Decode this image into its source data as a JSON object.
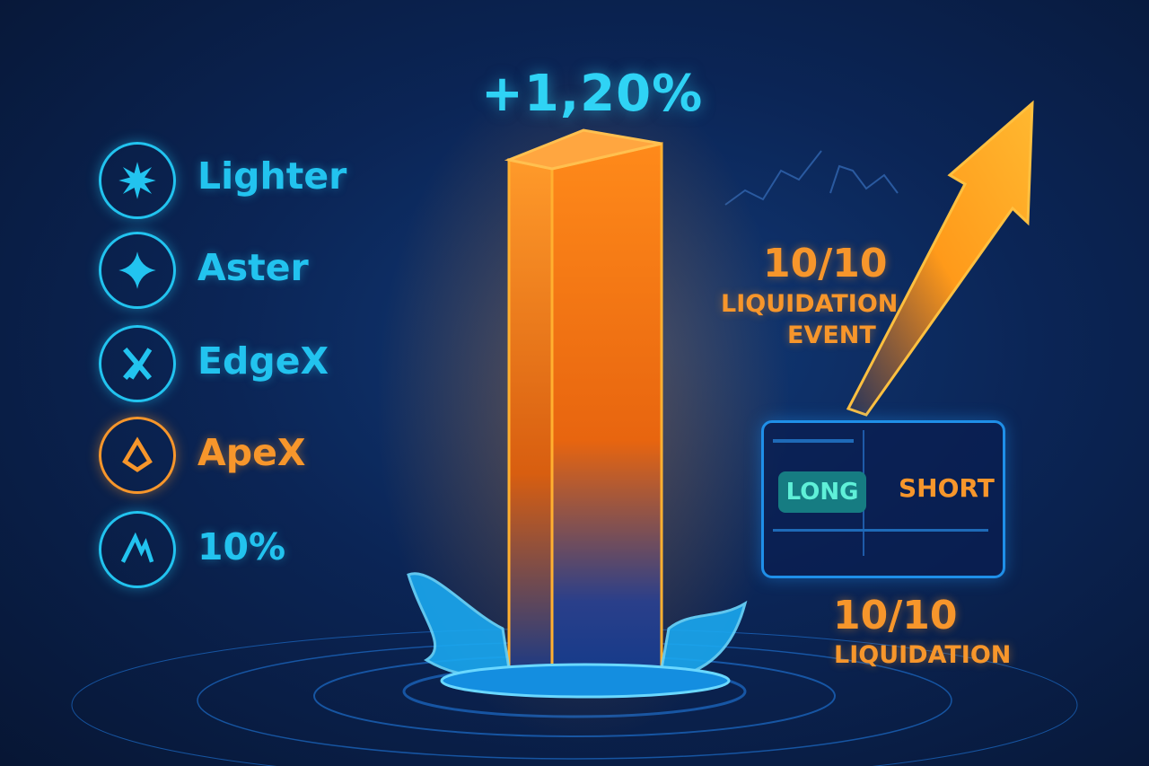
{
  "headline_change": "+1,20%",
  "exchanges": [
    {
      "name": "Lighter",
      "icon": "starburst-icon",
      "color": "#22c3ef"
    },
    {
      "name": "Aster",
      "icon": "four-point-star-icon",
      "color": "#22c3ef"
    },
    {
      "name": "EdgeX",
      "icon": "x-logo-icon",
      "color": "#22c3ef"
    },
    {
      "name": "ApeX",
      "icon": "triangle-logo-icon",
      "color": "#f7962b"
    },
    {
      "name": "10%",
      "icon": "m-logo-icon",
      "color": "#22c3ef"
    }
  ],
  "event": {
    "date": "10/10",
    "line1": "LIQUIDATION",
    "line2": "EVENT"
  },
  "trade_panel": {
    "long_label": "LONG",
    "short_label": "SHORT"
  },
  "footer_event": {
    "date": "10/10",
    "label": "LIQUIDATION"
  },
  "colors": {
    "accent_cyan": "#22c3ef",
    "accent_orange": "#f7962b",
    "background": "#0b2556"
  }
}
